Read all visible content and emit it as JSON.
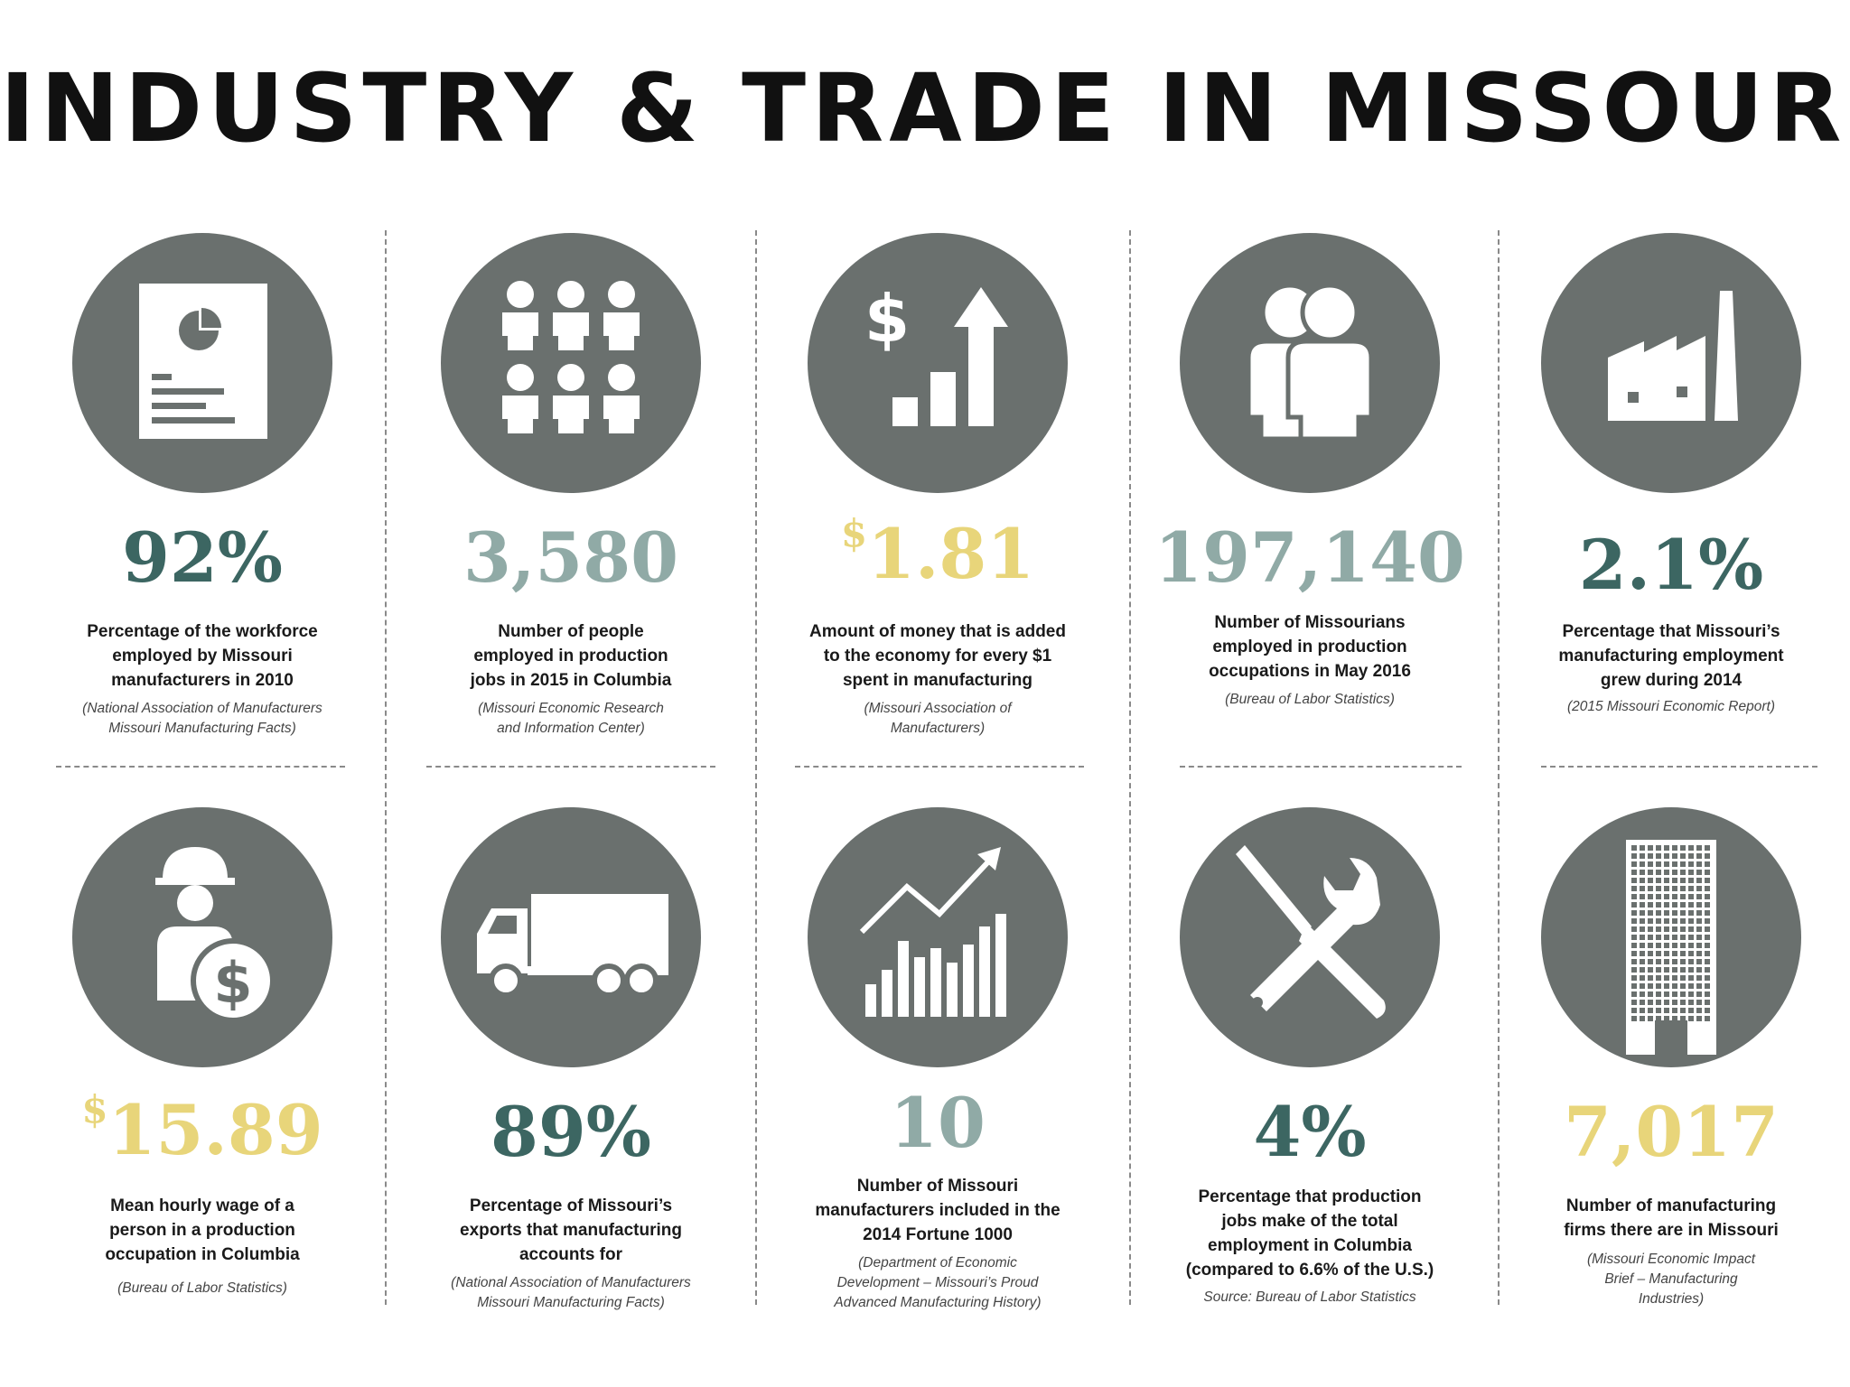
{
  "title": "INDUSTRY & TRADE IN MISSOURI",
  "colors": {
    "circle": "#6a706e",
    "dark_teal": "#3c6662",
    "sage": "#90aaa6",
    "gold": "#e8d57a",
    "divider": "#8a8a8a"
  },
  "stats": [
    {
      "icon": "report-icon",
      "prefix": "",
      "value": "92%",
      "color": "dark_teal",
      "description": [
        "Percentage of the workforce",
        "employed by Missouri",
        "manufacturers in 2010"
      ],
      "source": [
        "(National Association of Manufacturers",
        "Missouri Manufacturing Facts)"
      ]
    },
    {
      "icon": "people-group-icon",
      "prefix": "",
      "value": "3,580",
      "color": "sage",
      "description": [
        "Number of people",
        "employed in production",
        "jobs in 2015 in Columbia"
      ],
      "source": [
        "(Missouri Economic Research",
        "and Information Center)"
      ]
    },
    {
      "icon": "money-growth-icon",
      "prefix": "$",
      "value": "1.81",
      "color": "gold",
      "description": [
        "Amount of money that is added",
        "to the economy for every $1",
        "spent in manufacturing"
      ],
      "source": [
        "(Missouri Association of",
        "Manufacturers)"
      ]
    },
    {
      "icon": "two-people-icon",
      "prefix": "",
      "value": "197,140",
      "color": "sage",
      "description": [
        "Number of Missourians",
        "employed in production",
        "occupations in May 2016"
      ],
      "source": [
        "(Bureau of Labor Statistics)"
      ]
    },
    {
      "icon": "factory-icon",
      "prefix": "",
      "value": "2.1%",
      "color": "dark_teal",
      "description": [
        "Percentage that Missouri’s",
        "manufacturing employment",
        "grew during 2014"
      ],
      "source": [
        "(2015 Missouri Economic Report)"
      ]
    },
    {
      "icon": "worker-wage-icon",
      "prefix": "$",
      "value": "15.89",
      "color": "gold",
      "description": [
        "Mean hourly wage of a",
        "person in a production",
        "occupation in Columbia"
      ],
      "source": [
        "(Bureau of Labor Statistics)"
      ]
    },
    {
      "icon": "truck-icon",
      "prefix": "",
      "value": "89%",
      "color": "dark_teal",
      "description": [
        "Percentage of Missouri’s",
        "exports that manufacturing",
        "accounts for"
      ],
      "source": [
        "(National Association of Manufacturers",
        "Missouri Manufacturing Facts)"
      ]
    },
    {
      "icon": "growth-chart-icon",
      "prefix": "",
      "value": "10",
      "color": "sage",
      "description": [
        "Number of Missouri",
        "manufacturers included in the",
        "2014 Fortune 1000"
      ],
      "source": [
        "(Department of Economic",
        "Development – Missouri’s Proud",
        "Advanced Manufacturing History)"
      ]
    },
    {
      "icon": "tools-icon",
      "prefix": "",
      "value": "4%",
      "color": "dark_teal",
      "description": [
        "Percentage that production",
        "jobs make of the total",
        "employment in Columbia",
        "(compared to 6.6% of the U.S.)"
      ],
      "source": [
        "Source: Bureau of Labor Statistics"
      ]
    },
    {
      "icon": "building-icon",
      "prefix": "",
      "value": "7,017",
      "color": "gold",
      "description": [
        "Number of manufacturing",
        "firms there are in Missouri"
      ],
      "source": [
        "(Missouri Economic Impact",
        "Brief – Manufacturing",
        "Industries)"
      ]
    }
  ]
}
